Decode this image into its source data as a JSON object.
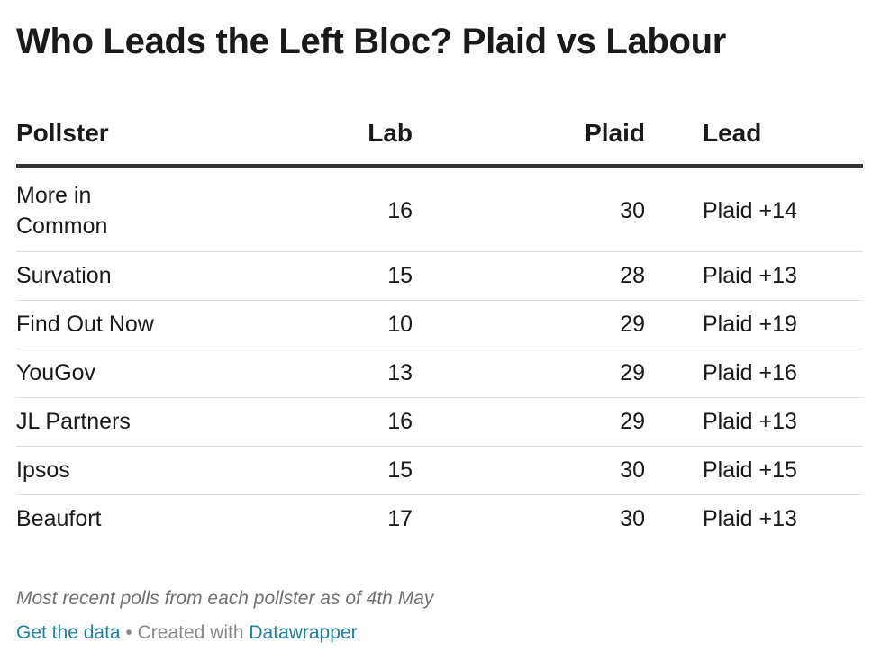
{
  "chart_data": {
    "type": "table",
    "title": "Who Leads the Left Bloc? Plaid vs Labour",
    "columns": [
      "Pollster",
      "Lab",
      "Plaid",
      "Lead"
    ],
    "rows": [
      {
        "pollster": "More in Common",
        "lab": "16",
        "plaid": "30",
        "lead": "Plaid +14"
      },
      {
        "pollster": "Survation",
        "lab": "15",
        "plaid": "28",
        "lead": "Plaid +13"
      },
      {
        "pollster": "Find Out Now",
        "lab": "10",
        "plaid": "29",
        "lead": "Plaid +19"
      },
      {
        "pollster": "YouGov",
        "lab": "13",
        "plaid": "29",
        "lead": "Plaid +16"
      },
      {
        "pollster": "JL Partners",
        "lab": "16",
        "plaid": "29",
        "lead": "Plaid +13"
      },
      {
        "pollster": "Ipsos",
        "lab": "15",
        "plaid": "30",
        "lead": "Plaid +15"
      },
      {
        "pollster": "Beaufort",
        "lab": "17",
        "plaid": "30",
        "lead": "Plaid +13"
      }
    ],
    "notes": "Most recent polls from each pollster as of 4th May"
  },
  "footer": {
    "get_data": "Get the data",
    "separator": " • ",
    "created_with": "Created with ",
    "tool": "Datawrapper"
  },
  "colors": {
    "link": "#1d81a2",
    "header_rule": "#333333",
    "row_rule": "#e0e0e0"
  }
}
